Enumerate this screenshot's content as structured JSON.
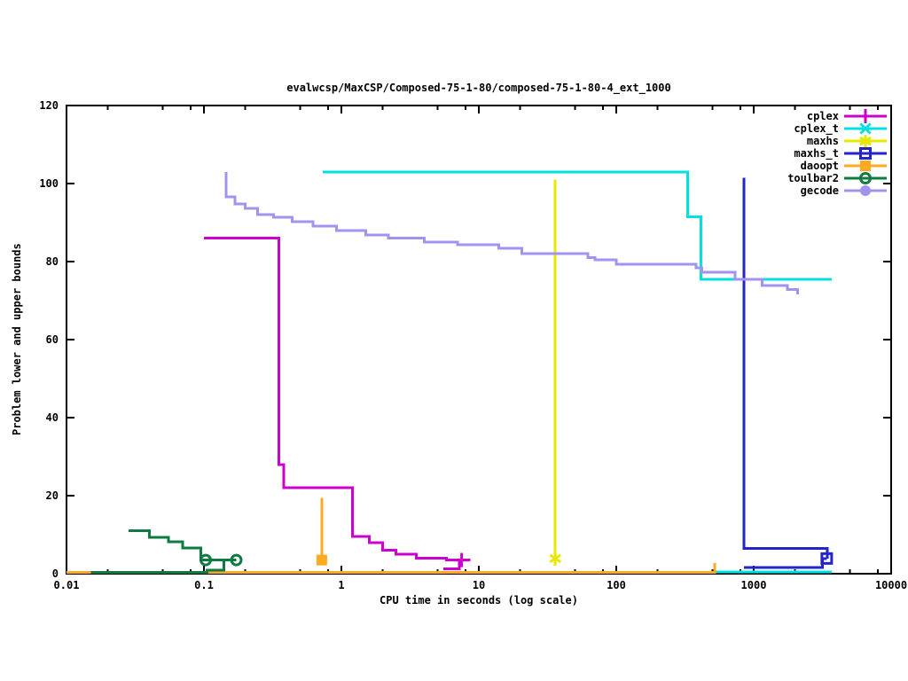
{
  "chart_data": {
    "type": "line",
    "title": "evalwcsp/MaxCSP/Composed-75-1-80/composed-75-1-80-4_ext_1000",
    "xlabel": "CPU time in seconds (log scale)",
    "ylabel": "Problem lower and upper bounds",
    "xscale": "log",
    "xlim": [
      0.01,
      10000
    ],
    "ylim": [
      0,
      120
    ],
    "grid": false,
    "legend_position": "top-right-inside",
    "xticks": {
      "major": [
        0.01,
        0.1,
        1,
        10,
        100,
        1000,
        10000
      ],
      "labels": [
        "0.01",
        "0.1",
        "1",
        "10",
        "100",
        "1000",
        "10000"
      ],
      "minor_multiples": [
        2,
        5,
        8
      ]
    },
    "yticks": {
      "major": [
        0,
        20,
        40,
        60,
        80,
        100,
        120
      ],
      "labels": [
        "0",
        "20",
        "40",
        "60",
        "80",
        "100",
        "120"
      ]
    },
    "series": [
      {
        "name": "cplex",
        "color": "#cc00cc",
        "marker": "plus",
        "lines": [
          [
            [
              0.1,
              86
            ],
            [
              0.35,
              86
            ],
            [
              0.35,
              28
            ],
            [
              0.38,
              28
            ],
            [
              0.38,
              22
            ],
            [
              1.2,
              22
            ],
            [
              1.2,
              9.5
            ],
            [
              1.6,
              9.5
            ],
            [
              1.6,
              8
            ],
            [
              2.0,
              8
            ],
            [
              2.0,
              6
            ],
            [
              2.5,
              6
            ],
            [
              2.5,
              5
            ],
            [
              3.5,
              5
            ],
            [
              3.5,
              4
            ],
            [
              5.8,
              4
            ],
            [
              5.8,
              3.5
            ],
            [
              8.7,
              3.5
            ]
          ],
          [
            [
              5.5,
              1.2
            ],
            [
              7.2,
              1.2
            ],
            [
              7.2,
              3.5
            ]
          ]
        ],
        "markers_at": [
          [
            7.5,
            3.5
          ]
        ]
      },
      {
        "name": "cplex_t",
        "color": "#00e0e0",
        "marker": "cross",
        "lines": [
          [
            [
              0.73,
              103
            ],
            [
              330,
              103
            ],
            [
              330,
              91.5
            ],
            [
              412,
              91.5
            ],
            [
              412,
              75.5
            ],
            [
              3700,
              75.5
            ]
          ],
          [
            [
              530,
              0.5
            ],
            [
              3700,
              0.5
            ]
          ]
        ],
        "markers_at": []
      },
      {
        "name": "maxhs",
        "color": "#e8e800",
        "marker": "star",
        "lines": [
          [
            [
              36,
              101
            ],
            [
              36,
              2
            ]
          ]
        ],
        "markers_at": [
          [
            36,
            3.9
          ]
        ]
      },
      {
        "name": "maxhs_t",
        "color": "#2424c8",
        "marker": "square-open",
        "lines": [
          [
            [
              850,
              101.5
            ],
            [
              850,
              6.5
            ],
            [
              3430,
              6.5
            ],
            [
              3430,
              3.9
            ]
          ],
          [
            [
              850,
              1.6
            ],
            [
              3170,
              1.6
            ],
            [
              3170,
              3.9
            ],
            [
              3400,
              3.9
            ]
          ]
        ],
        "markers_at": [
          [
            3400,
            3.9
          ]
        ]
      },
      {
        "name": "daoopt",
        "color": "#ffaa20",
        "marker": "square-filled",
        "lines": [
          [
            [
              0.72,
              19.4
            ],
            [
              0.72,
              3.5
            ]
          ],
          [
            [
              0.01,
              0.35
            ],
            [
              520,
              0.35
            ],
            [
              520,
              2.7
            ]
          ]
        ],
        "markers_at": [
          [
            0.72,
            3.5
          ]
        ]
      },
      {
        "name": "toulbar2",
        "color": "#0e7c42",
        "marker": "circle-dot",
        "lines": [
          [
            [
              0.0283,
              11
            ],
            [
              0.04,
              11
            ],
            [
              0.04,
              9.3
            ],
            [
              0.055,
              9.3
            ],
            [
              0.055,
              8.2
            ],
            [
              0.07,
              8.2
            ],
            [
              0.07,
              6.6
            ],
            [
              0.095,
              6.6
            ],
            [
              0.095,
              3.5
            ],
            [
              0.172,
              3.5
            ]
          ],
          [
            [
              0.015,
              0.35
            ],
            [
              0.105,
              0.35
            ],
            [
              0.105,
              0.9
            ],
            [
              0.14,
              0.9
            ],
            [
              0.14,
              3.5
            ],
            [
              0.172,
              3.5
            ]
          ]
        ],
        "markers_at": [
          [
            0.103,
            3.5
          ],
          [
            0.172,
            3.5
          ]
        ]
      },
      {
        "name": "gecode",
        "color": "#a393f0",
        "marker": "circle-filled",
        "lines": [
          [
            [
              0.145,
              103
            ],
            [
              0.145,
              96.6
            ],
            [
              0.168,
              96.6
            ],
            [
              0.168,
              94.8
            ],
            [
              0.2,
              94.8
            ],
            [
              0.2,
              93.6
            ],
            [
              0.245,
              93.6
            ],
            [
              0.245,
              92.1
            ],
            [
              0.32,
              92.1
            ],
            [
              0.32,
              91.4
            ],
            [
              0.44,
              91.4
            ],
            [
              0.44,
              90.2
            ],
            [
              0.62,
              90.2
            ],
            [
              0.62,
              89.1
            ],
            [
              0.92,
              89.1
            ],
            [
              0.92,
              88
            ],
            [
              1.5,
              88
            ],
            [
              1.5,
              86.8
            ],
            [
              2.2,
              86.8
            ],
            [
              2.2,
              86
            ],
            [
              4,
              86
            ],
            [
              4,
              85
            ],
            [
              7,
              85
            ],
            [
              7,
              84.3
            ],
            [
              14,
              84.3
            ],
            [
              14,
              83.4
            ],
            [
              20.5,
              83.4
            ],
            [
              20.5,
              82
            ],
            [
              62,
              82
            ],
            [
              62,
              81
            ],
            [
              70,
              81
            ],
            [
              70,
              80.4
            ],
            [
              100,
              80.4
            ],
            [
              100,
              79.3
            ],
            [
              380,
              79.3
            ],
            [
              380,
              78.4
            ],
            [
              420,
              78.4
            ],
            [
              420,
              77.3
            ],
            [
              730,
              77.3
            ],
            [
              730,
              75.4
            ],
            [
              1150,
              75.4
            ],
            [
              1150,
              73.9
            ],
            [
              1760,
              73.9
            ],
            [
              1760,
              72.8
            ],
            [
              2080,
              72.8
            ],
            [
              2080,
              71.6
            ]
          ]
        ],
        "markers_at": []
      }
    ]
  }
}
